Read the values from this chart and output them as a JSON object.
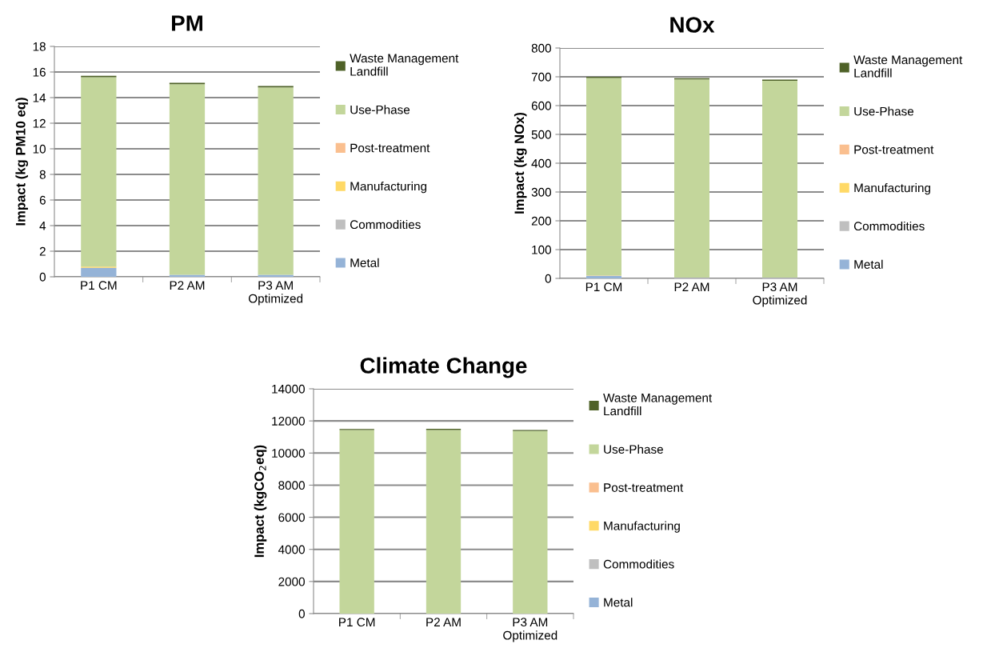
{
  "chart_data": [
    {
      "type": "bar",
      "stacked": true,
      "title": "PM",
      "ylabel": "Impact (kg PM10 eq)",
      "categories": [
        "P1 CM",
        "P2 AM",
        "P3 AM\nOptimized"
      ],
      "ylim": [
        0,
        18
      ],
      "yticks": [
        0,
        2,
        4,
        6,
        8,
        10,
        12,
        14,
        16,
        18
      ],
      "grid": "y",
      "legend": "right",
      "series": [
        {
          "name": "Metal",
          "color": "#95b3d7",
          "values": [
            0.7,
            0.15,
            0.15
          ]
        },
        {
          "name": "Commodities",
          "color": "#bfbfbf",
          "values": [
            null,
            0,
            0
          ]
        },
        {
          "name": "Manufacturing",
          "color": "#ffd966",
          "values": [
            0.1,
            0,
            0
          ]
        },
        {
          "name": "Post-treatment",
          "color": "#fabf8f",
          "values": [
            null,
            0,
            0
          ]
        },
        {
          "name": "Use-Phase",
          "color": "#c3d69b",
          "values": [
            14.8,
            14.9,
            14.65
          ]
        },
        {
          "name": "Waste Management Landfill",
          "color": "#4f6228",
          "values": [
            0.1,
            0.1,
            0.1
          ]
        }
      ]
    },
    {
      "type": "bar",
      "stacked": true,
      "title": "NOx",
      "ylabel": "Impact (kg NOx)",
      "categories": [
        "P1 CM",
        "P2 AM",
        "P3 AM\nOptimized"
      ],
      "ylim": [
        0,
        800
      ],
      "yticks": [
        0,
        100,
        200,
        300,
        400,
        500,
        600,
        700,
        800
      ],
      "grid": "y",
      "legend": "right",
      "series": [
        {
          "name": "Metal",
          "color": "#95b3d7",
          "values": [
            8,
            2,
            2
          ]
        },
        {
          "name": "Commodities",
          "color": "#bfbfbf",
          "values": [
            0,
            0,
            0
          ]
        },
        {
          "name": "Manufacturing",
          "color": "#ffd966",
          "values": [
            0,
            0,
            0
          ]
        },
        {
          "name": "Post-treatment",
          "color": "#fabf8f",
          "values": [
            2,
            1,
            1
          ]
        },
        {
          "name": "Use-Phase",
          "color": "#c3d69b",
          "values": [
            686,
            688,
            683
          ]
        },
        {
          "name": "Waste Management Landfill",
          "color": "#4f6228",
          "values": [
            4,
            4,
            4
          ]
        }
      ]
    },
    {
      "type": "bar",
      "stacked": true,
      "title": "Climate Change",
      "ylabel": "Impact (kgCO$_{2}$eq)",
      "categories": [
        "P1 CM",
        "P2 AM",
        "P3 AM\nOptimized"
      ],
      "ylim": [
        0,
        14000
      ],
      "yticks": [
        0,
        2000,
        4000,
        6000,
        8000,
        10000,
        12000,
        14000
      ],
      "grid": "y",
      "legend": "right",
      "series": [
        {
          "name": "Metal",
          "color": "#95b3d7",
          "values": [
            null,
            null,
            null
          ]
        },
        {
          "name": "Commodities",
          "color": "#bfbfbf",
          "values": [
            0,
            0,
            0
          ]
        },
        {
          "name": "Manufacturing",
          "color": "#ffd966",
          "values": [
            0,
            0,
            0
          ]
        },
        {
          "name": "Post-treatment",
          "color": "#fabf8f",
          "values": [
            0,
            0,
            0
          ]
        },
        {
          "name": "Use-Phase",
          "color": "#c3d69b",
          "values": [
            11430,
            11440,
            11370
          ]
        },
        {
          "name": "Waste Management Landfill",
          "color": "#4f6228",
          "values": [
            70,
            70,
            60
          ]
        }
      ]
    }
  ]
}
